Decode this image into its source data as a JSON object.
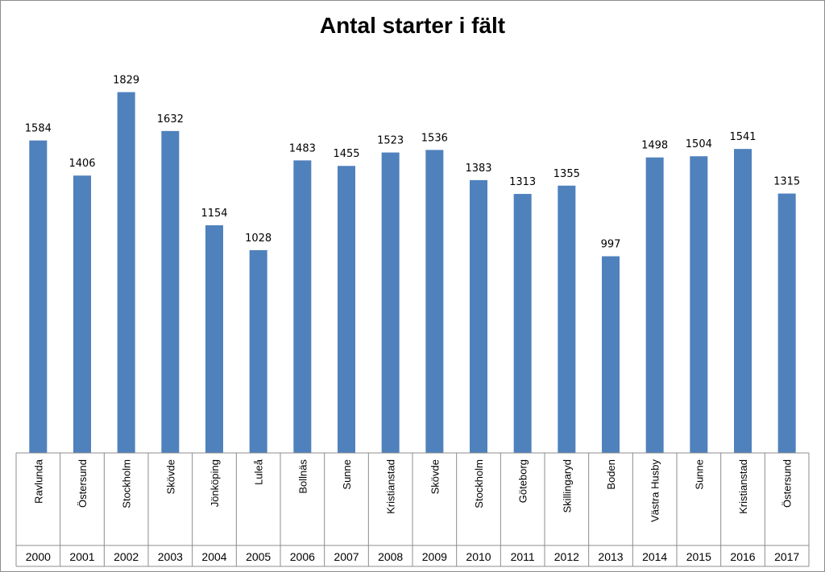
{
  "chart_data": {
    "type": "bar",
    "title": "Antal starter i fält",
    "xlabel": "",
    "ylabel": "",
    "ylim": [
      0,
      2000
    ],
    "grid": false,
    "legend": "none",
    "bar_color": "#4f81bd",
    "categories": [
      {
        "year": "2000",
        "place": "Ravlunda"
      },
      {
        "year": "2001",
        "place": "Östersund"
      },
      {
        "year": "2002",
        "place": "Stockholm"
      },
      {
        "year": "2003",
        "place": "Skövde"
      },
      {
        "year": "2004",
        "place": "Jönköping"
      },
      {
        "year": "2005",
        "place": "Luleå"
      },
      {
        "year": "2006",
        "place": "Bollnäs"
      },
      {
        "year": "2007",
        "place": "Sunne"
      },
      {
        "year": "2008",
        "place": "Kristianstad"
      },
      {
        "year": "2009",
        "place": "Skövde"
      },
      {
        "year": "2010",
        "place": "Stockholm"
      },
      {
        "year": "2011",
        "place": "Göteborg"
      },
      {
        "year": "2012",
        "place": "Skillingaryd"
      },
      {
        "year": "2013",
        "place": "Boden"
      },
      {
        "year": "2014",
        "place": "Västra Husby"
      },
      {
        "year": "2015",
        "place": "Sunne"
      },
      {
        "year": "2016",
        "place": "Kristianstad"
      },
      {
        "year": "2017",
        "place": "Östersund"
      }
    ],
    "values": [
      1584,
      1406,
      1829,
      1632,
      1154,
      1028,
      1483,
      1455,
      1523,
      1536,
      1383,
      1313,
      1355,
      997,
      1498,
      1504,
      1541,
      1315
    ]
  }
}
